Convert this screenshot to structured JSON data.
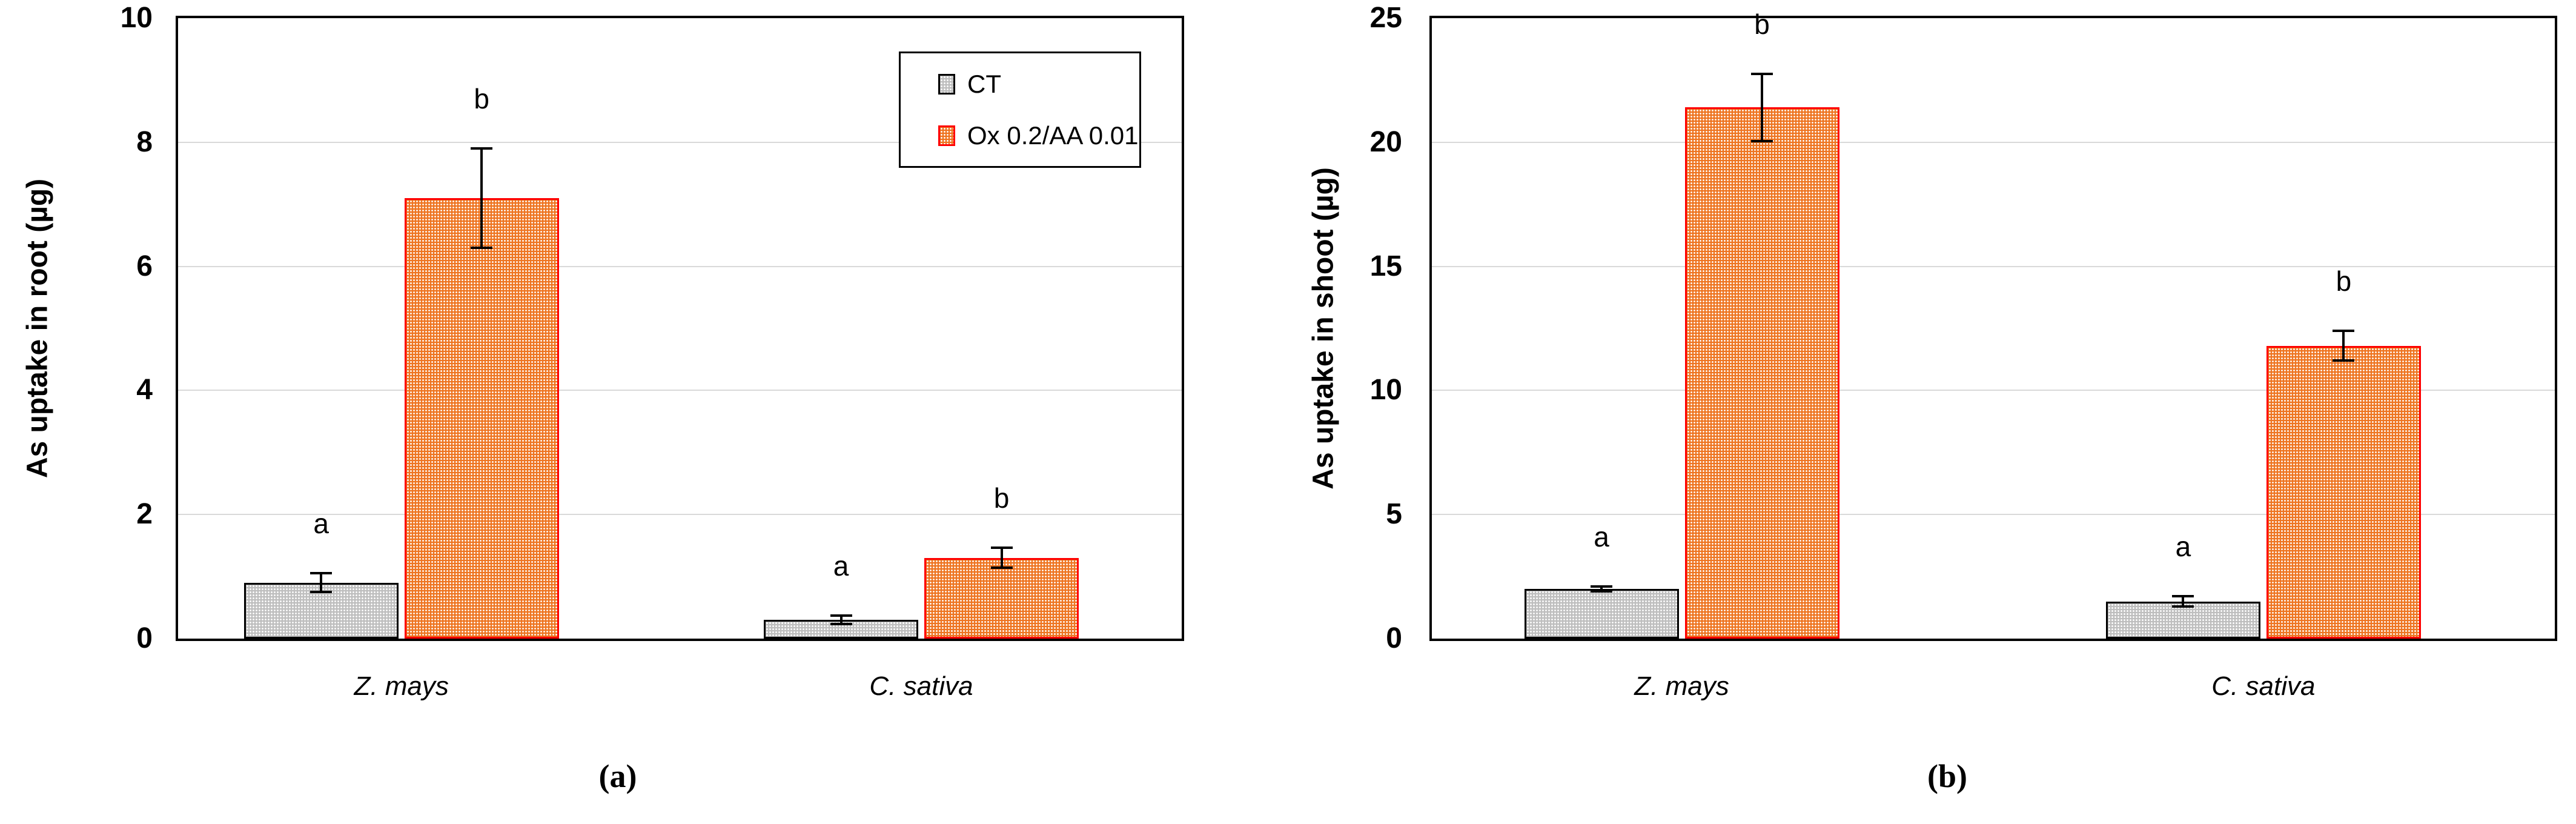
{
  "styles": {
    "ct_fill": "#BFBFBF",
    "ct_border": "#000000",
    "ox_fill": "#EE7623",
    "ox_border": "#FF0000",
    "gridline": "#D9D9D9",
    "axis": "#000000",
    "background": "#FFFFFF"
  },
  "chart_data": [
    {
      "type": "bar",
      "panel": "a",
      "caption": "(a)",
      "title": "",
      "xlabel": "",
      "ylabel": "As uptake in root (µg)",
      "ylim": [
        0,
        10
      ],
      "yticks": [
        0,
        2,
        4,
        6,
        8,
        10
      ],
      "grid": true,
      "categories": [
        "Z. mays",
        "C. sativa"
      ],
      "series": [
        {
          "name": "CT",
          "fill": "#BFBFBF",
          "border": "#000000",
          "values": [
            0.9,
            0.3
          ],
          "errors": [
            0.15,
            0.07
          ],
          "sig_letters": [
            "a",
            "a"
          ]
        },
        {
          "name": "Ox 0.2/AA 0.01",
          "fill": "#EE7623",
          "border": "#FF0000",
          "values": [
            7.1,
            1.3
          ],
          "errors": [
            0.8,
            0.16
          ],
          "sig_letters": [
            "b",
            "b"
          ]
        }
      ],
      "legend": {
        "position": "top-right",
        "items": [
          "CT",
          "Ox 0.2/AA 0.01"
        ]
      }
    },
    {
      "type": "bar",
      "panel": "b",
      "caption": "(b)",
      "title": "",
      "xlabel": "",
      "ylabel": "As uptake in shoot (µg)",
      "ylim": [
        0,
        25
      ],
      "yticks": [
        0,
        5,
        10,
        15,
        20,
        25
      ],
      "grid": true,
      "categories": [
        "Z. mays",
        "C. sativa"
      ],
      "series": [
        {
          "name": "CT",
          "fill": "#BFBFBF",
          "border": "#000000",
          "values": [
            2.0,
            1.5
          ],
          "errors": [
            0.1,
            0.2
          ],
          "sig_letters": [
            "a",
            "a"
          ]
        },
        {
          "name": "Ox 0.2/AA 0.01",
          "fill": "#EE7623",
          "border": "#FF0000",
          "values": [
            21.4,
            11.8
          ],
          "errors": [
            1.35,
            0.6
          ],
          "sig_letters": [
            "b",
            "b"
          ]
        }
      ],
      "legend": null
    }
  ]
}
